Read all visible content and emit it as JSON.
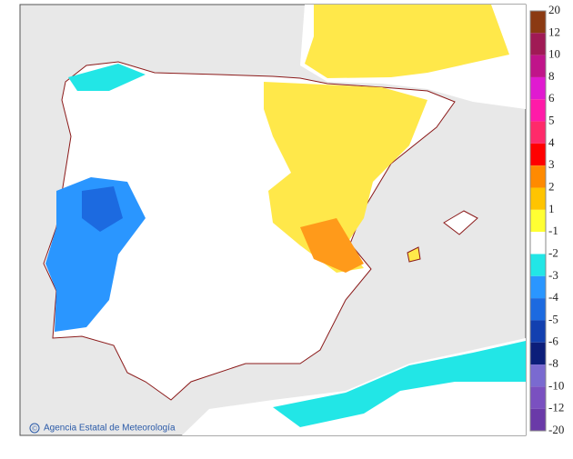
{
  "legend": {
    "labels": [
      "20",
      "12",
      "10",
      "8",
      "6",
      "5",
      "4",
      "3",
      "2",
      "1",
      "-1",
      "-2",
      "-3",
      "-4",
      "-5",
      "-6",
      "-8",
      "-10",
      "-12",
      "-20"
    ],
    "colors": [
      "#8b3a12",
      "#a01a55",
      "#c0148a",
      "#e01ad0",
      "#ff1aa8",
      "#ff2a6a",
      "#ff0000",
      "#ff8a00",
      "#ffc400",
      "#ffff33",
      "#ffffff",
      "#22e6e6",
      "#2a96ff",
      "#1c6ae0",
      "#1240b0",
      "#0c1e7a",
      "#7a6ad0",
      "#7a50c0",
      "#6a3aa8"
    ]
  },
  "credit_symbol": "©",
  "credit": "Agencia Estatal de Meteorología"
}
